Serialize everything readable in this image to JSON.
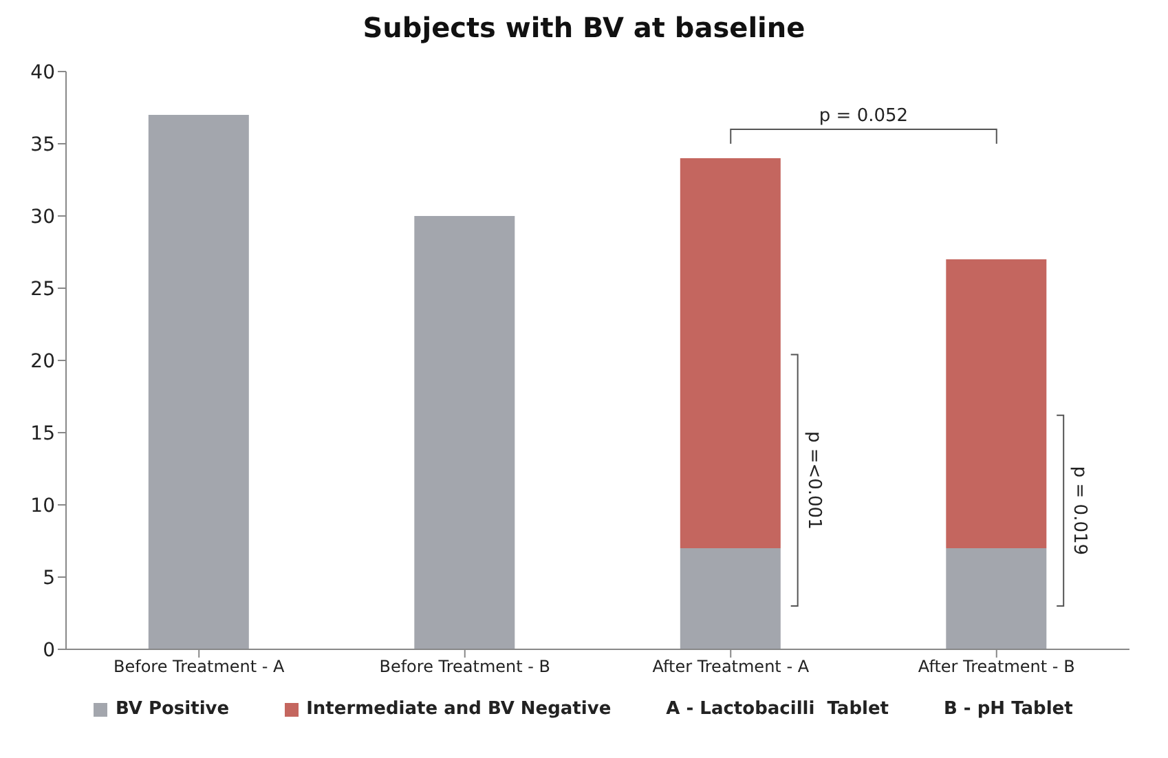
{
  "chart_data": {
    "type": "bar",
    "title": "Subjects with BV at baseline",
    "categories": [
      "Before Treatment - A",
      "Before Treatment - B",
      "After Treatment - A",
      "After Treatment - B"
    ],
    "stacked": true,
    "series": [
      {
        "name": "BV Positive",
        "color": "#a3a6ad",
        "values": [
          37,
          30,
          7,
          7
        ]
      },
      {
        "name": "Intermediate and BV Negative",
        "color": "#c4665f",
        "values": [
          null,
          null,
          27,
          20
        ]
      }
    ],
    "ylim": [
      0,
      40
    ],
    "yticks": [
      0,
      5,
      10,
      15,
      20,
      25,
      30,
      35,
      40
    ],
    "grid": false,
    "legend": "bottom",
    "annotations": [
      "p = 0.052",
      "p =<0.001",
      "p = 0.019",
      "A - Lactobacilli  Tablet",
      "B - pH Tablet"
    ]
  }
}
